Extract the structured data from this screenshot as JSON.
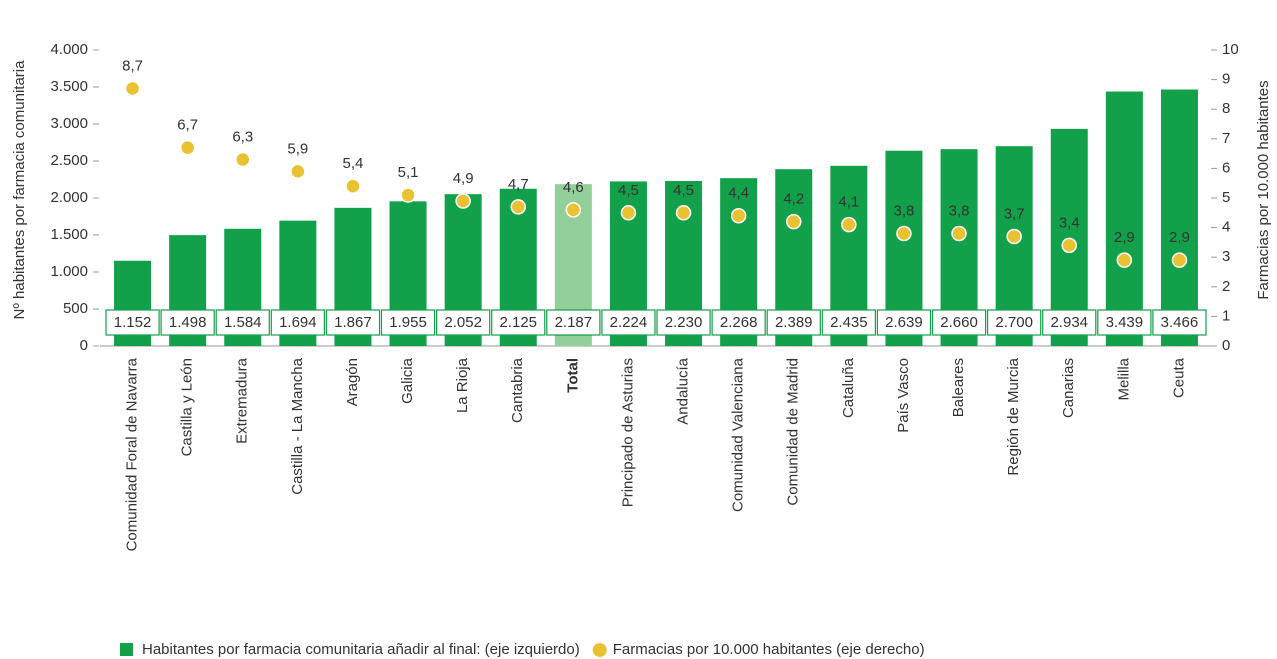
{
  "chart_data": {
    "type": "bar_dot",
    "y_label": "Nº habitantes por farmacia comunitaria",
    "y2_label": "Farmacias por 10.000 habitantes",
    "categories": [
      "Comunidad Foral de Navarra",
      "Castilla y León",
      "Extremadura",
      "Castilla - La Mancha",
      "Aragón",
      "Galicia",
      "La Rioja",
      "Cantabria",
      "Total",
      "Principado de Asturias",
      "Andalucía",
      "Comunidad Valenciana",
      "Comunidad de Madrid",
      "Cataluña",
      "País Vasco",
      "Baleares",
      "Región de Murcia",
      "Canarias",
      "Melilla",
      "Ceuta"
    ],
    "series": [
      {
        "name": "Habitantes por farmacia comunitaria añadir al final: (eje izquierdo)",
        "color": "#12a04a",
        "colors": [
          "#12a04a",
          "#12a04a",
          "#12a04a",
          "#12a04a",
          "#12a04a",
          "#12a04a",
          "#12a04a",
          "#12a04a",
          "#93cf9a",
          "#12a04a",
          "#12a04a",
          "#12a04a",
          "#12a04a",
          "#12a04a",
          "#12a04a",
          "#12a04a",
          "#12a04a",
          "#12a04a",
          "#12a04a",
          "#12a04a"
        ],
        "values": [
          1152,
          1498,
          1584,
          1694,
          1867,
          1955,
          2052,
          2125,
          2187,
          2224,
          2230,
          2268,
          2389,
          2435,
          2639,
          2660,
          2700,
          2934,
          3439,
          3466
        ],
        "value_labels": [
          "1.152",
          "1.498",
          "1.584",
          "1.694",
          "1.867",
          "1.955",
          "2.052",
          "2.125",
          "2.187",
          "2.224",
          "2.230",
          "2.268",
          "2.389",
          "2.435",
          "2.639",
          "2.660",
          "2.700",
          "2.934",
          "3.439",
          "3.466"
        ]
      },
      {
        "name": "Farmacias por 10.000 habitantes (eje derecho)",
        "color": "#e9c232",
        "axis": "y2",
        "values": [
          8.7,
          6.7,
          6.3,
          5.9,
          5.4,
          5.1,
          4.9,
          4.7,
          4.6,
          4.5,
          4.5,
          4.4,
          4.2,
          4.1,
          3.8,
          3.8,
          3.7,
          3.4,
          2.9,
          2.9
        ],
        "value_labels": [
          "8,7",
          "6,7",
          "6,3",
          "5,9",
          "5,4",
          "5,1",
          "4,9",
          "4,7",
          "4,6",
          "4,5",
          "4,5",
          "4,4",
          "4,2",
          "4,1",
          "3,8",
          "3,8",
          "3,7",
          "3,4",
          "2,9",
          "2,9"
        ]
      }
    ],
    "ylim": [
      0,
      4000
    ],
    "yticks": [
      0,
      500,
      {
        "value": 1000,
        "label": "1.000"
      },
      {
        "value": 1500,
        "label": "1.500"
      },
      {
        "value": 2000,
        "label": "2.000"
      },
      {
        "value": 2500,
        "label": "2.500"
      },
      {
        "value": 3000,
        "label": "3.000"
      },
      {
        "value": 3500,
        "label": "3.500"
      },
      {
        "value": 4000,
        "label": "4.000"
      }
    ],
    "y2lim": [
      0,
      10
    ],
    "y2ticks": [
      0,
      1,
      2,
      3,
      4,
      5,
      6,
      7,
      8,
      9,
      10
    ]
  }
}
